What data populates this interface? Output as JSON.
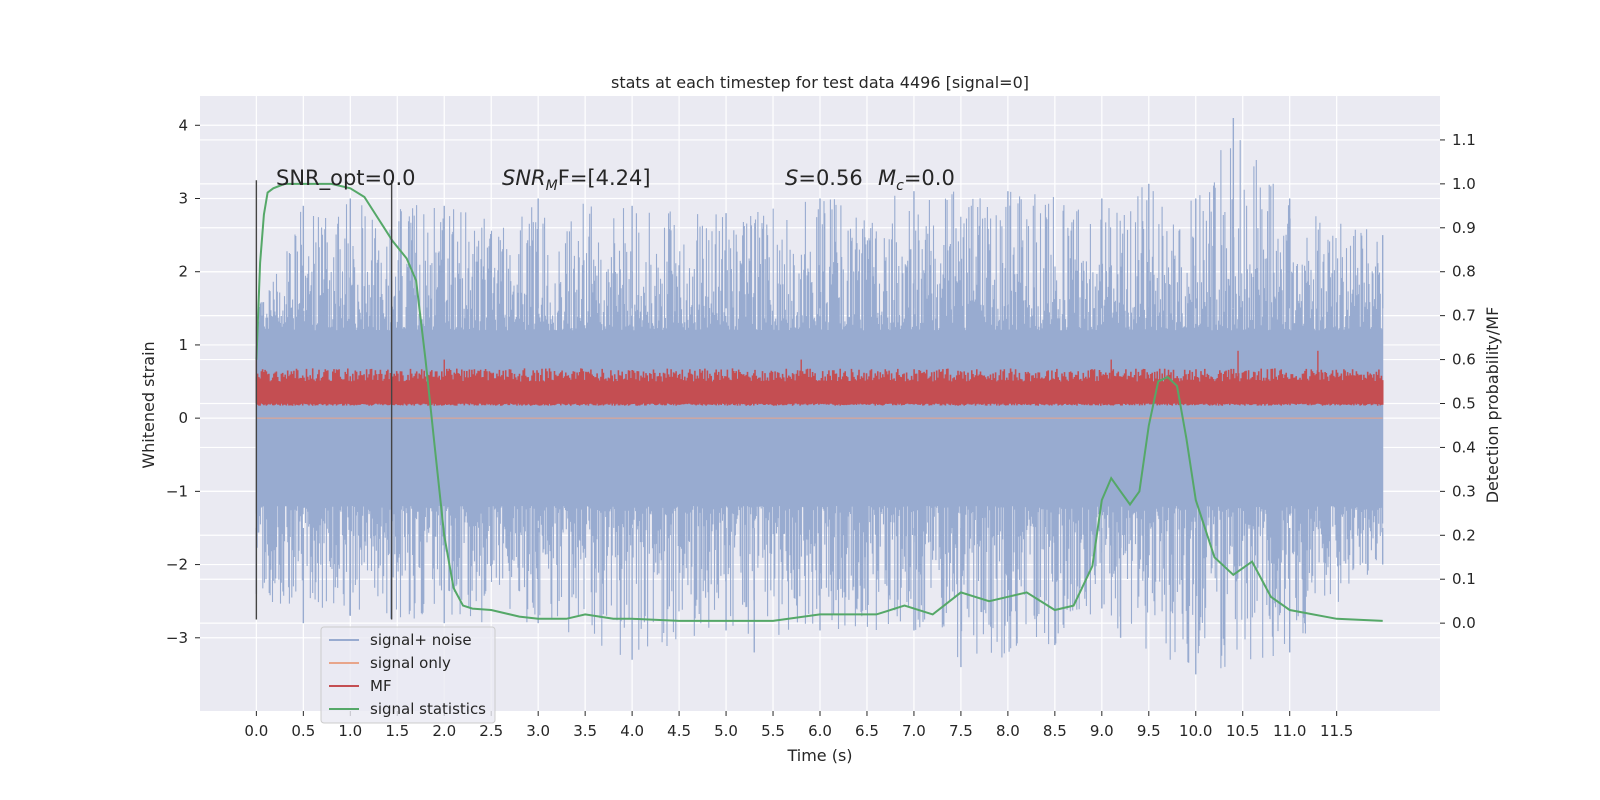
{
  "chart_data": {
    "type": "line",
    "title": "stats at each timestep for test data 4496 [signal=0]",
    "xlabel": "Time (s)",
    "ylabel_left": "Whitened strain",
    "ylabel_right": "Detection probability/MF",
    "xlim": [
      -0.6,
      12.6
    ],
    "ylim_left": [
      -4.0,
      4.4
    ],
    "ylim_right": [
      -0.2,
      1.2
    ],
    "x_ticks": [
      "0.0",
      "0.5",
      "1.0",
      "1.5",
      "2.0",
      "2.5",
      "3.0",
      "3.5",
      "4.0",
      "4.5",
      "5.0",
      "5.5",
      "6.0",
      "6.5",
      "7.0",
      "7.5",
      "8.0",
      "8.5",
      "9.0",
      "9.5",
      "10.0",
      "10.5",
      "11.0",
      "11.5"
    ],
    "y_ticks_left": [
      "−3",
      "−2",
      "−1",
      "0",
      "1",
      "2",
      "3",
      "4"
    ],
    "y_ticks_right": [
      "0.0",
      "0.1",
      "0.2",
      "0.3",
      "0.4",
      "0.5",
      "0.6",
      "0.7",
      "0.8",
      "0.9",
      "1.0",
      "1.1"
    ],
    "grid": true,
    "legend_placement": "lower-left",
    "annotations": {
      "snr_opt": "SNR_opt=0.0",
      "snr_mf_prefix": "SNR",
      "snr_mf_sub": "M",
      "snr_mf_suffix": "F=[4.24]",
      "s_label": "S",
      "s_value": "=0.56",
      "mc_label": "M",
      "mc_sub": "c",
      "mc_value": "=0.0"
    },
    "vertical_markers": {
      "x": [
        0.0,
        1.44
      ],
      "y_range_left": [
        -2.75,
        3.25
      ]
    },
    "series": [
      {
        "name": "signal+ noise",
        "color": "#98abd0",
        "axis": "left",
        "x_range": [
          0.0,
          11.99
        ],
        "envelope_upper": [
          [
            0.0,
            1.5
          ],
          [
            0.5,
            2.9
          ],
          [
            1.0,
            3.0
          ],
          [
            2.0,
            2.9
          ],
          [
            3.0,
            3.0
          ],
          [
            4.0,
            2.9
          ],
          [
            5.0,
            2.8
          ],
          [
            6.0,
            3.0
          ],
          [
            7.0,
            3.1
          ],
          [
            8.0,
            3.1
          ],
          [
            9.0,
            3.0
          ],
          [
            9.5,
            3.2
          ],
          [
            10.0,
            3.0
          ],
          [
            10.4,
            4.1
          ],
          [
            11.0,
            3.0
          ],
          [
            11.99,
            2.5
          ]
        ],
        "envelope_lower": [
          [
            0.0,
            -2.4
          ],
          [
            0.5,
            -2.8
          ],
          [
            1.0,
            -2.7
          ],
          [
            2.0,
            -2.8
          ],
          [
            3.0,
            -2.8
          ],
          [
            4.0,
            -3.3
          ],
          [
            5.0,
            -2.9
          ],
          [
            5.3,
            -3.2
          ],
          [
            6.0,
            -2.9
          ],
          [
            7.0,
            -2.9
          ],
          [
            7.5,
            -3.4
          ],
          [
            8.5,
            -3.1
          ],
          [
            9.0,
            -2.6
          ],
          [
            9.2,
            -3.0
          ],
          [
            10.0,
            -3.5
          ],
          [
            11.0,
            -3.2
          ],
          [
            11.99,
            -2.0
          ]
        ]
      },
      {
        "name": "signal only",
        "color": "#e8a58a",
        "axis": "left",
        "values": "flat at 0"
      },
      {
        "name": "MF",
        "color": "#c44e52",
        "axis": "right",
        "x_range": [
          0.0,
          11.99
        ],
        "band": [
          0.5,
          0.55
        ],
        "peaks": [
          [
            0.0,
            0.6
          ],
          [
            2.0,
            0.6
          ],
          [
            5.8,
            0.6
          ],
          [
            9.1,
            0.6
          ],
          [
            10.45,
            0.62
          ],
          [
            11.3,
            0.62
          ]
        ]
      },
      {
        "name": "signal statistics",
        "color": "#55a868",
        "axis": "right",
        "x": [
          0.0,
          0.04,
          0.08,
          0.12,
          0.18,
          0.3,
          0.5,
          0.8,
          1.0,
          1.15,
          1.3,
          1.45,
          1.6,
          1.7,
          1.8,
          1.9,
          2.0,
          2.1,
          2.2,
          2.3,
          2.5,
          2.8,
          3.0,
          3.3,
          3.5,
          3.8,
          4.0,
          4.5,
          5.0,
          5.5,
          6.0,
          6.3,
          6.6,
          6.9,
          7.2,
          7.5,
          7.8,
          8.0,
          8.2,
          8.5,
          8.7,
          8.9,
          9.0,
          9.1,
          9.2,
          9.3,
          9.4,
          9.5,
          9.6,
          9.7,
          9.8,
          9.9,
          10.0,
          10.2,
          10.4,
          10.6,
          10.8,
          11.0,
          11.5,
          11.99
        ],
        "y": [
          0.6,
          0.82,
          0.93,
          0.98,
          0.99,
          1.0,
          1.0,
          1.0,
          0.99,
          0.97,
          0.92,
          0.87,
          0.83,
          0.78,
          0.6,
          0.4,
          0.2,
          0.08,
          0.04,
          0.033,
          0.03,
          0.015,
          0.01,
          0.01,
          0.02,
          0.01,
          0.01,
          0.005,
          0.005,
          0.005,
          0.02,
          0.02,
          0.02,
          0.04,
          0.02,
          0.07,
          0.05,
          0.06,
          0.07,
          0.03,
          0.04,
          0.13,
          0.28,
          0.33,
          0.3,
          0.27,
          0.3,
          0.45,
          0.55,
          0.56,
          0.54,
          0.42,
          0.28,
          0.15,
          0.11,
          0.14,
          0.06,
          0.03,
          0.01,
          0.005
        ]
      }
    ]
  }
}
